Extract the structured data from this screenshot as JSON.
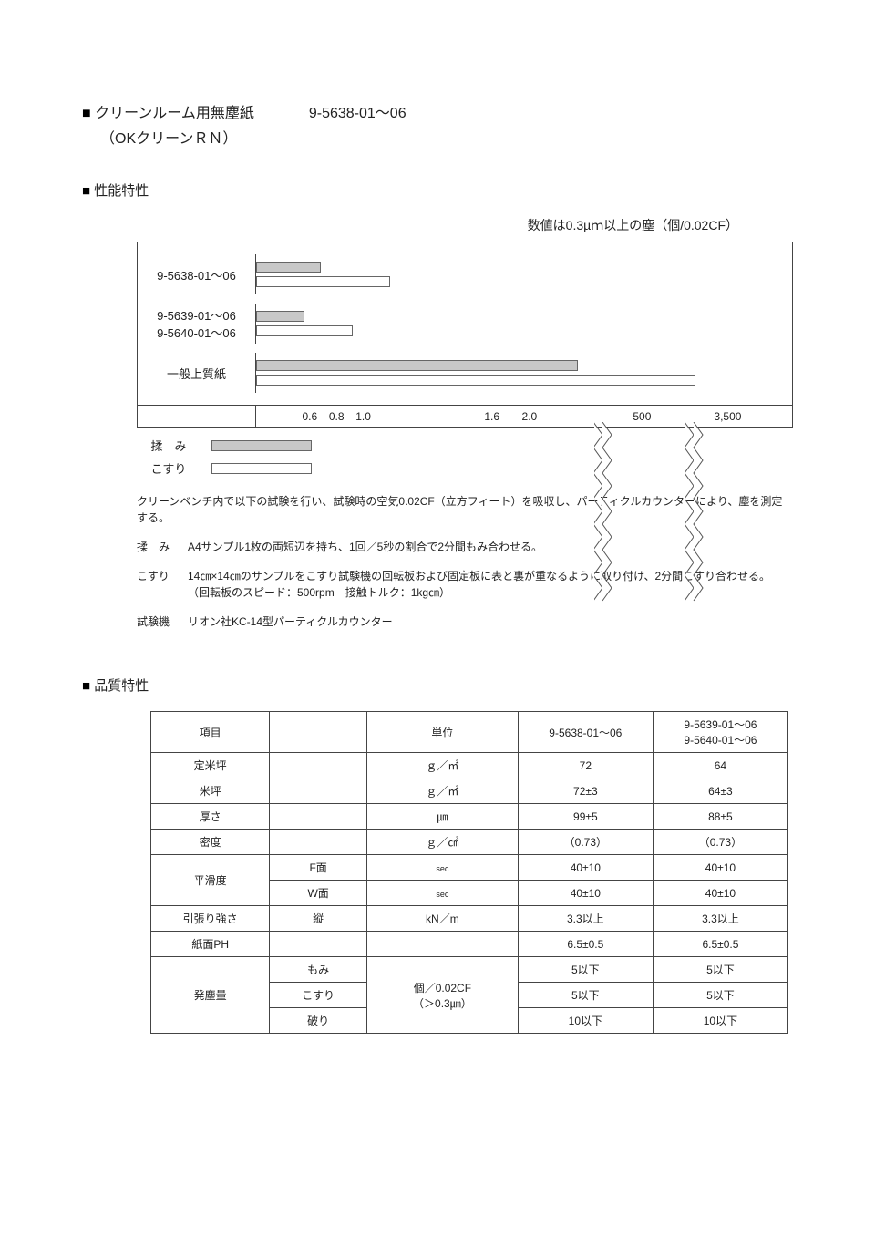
{
  "header": {
    "title": "クリーンルーム用無塵紙",
    "code": "9-5638-01～06",
    "subtitle": "（OKクリーンＲＮ）"
  },
  "section1": {
    "heading": "性能特性",
    "chart_caption": "数値は0.3µｍ以上の塵（個/0.02CF）",
    "rows": [
      {
        "label": "9-5638-01～06",
        "lines": [
          ""
        ],
        "bar1_pct": 12,
        "bar2_pct": 25
      },
      {
        "label": "9-5639-01～06",
        "lines": [
          "9-5640-01～06"
        ],
        "bar1_pct": 9,
        "bar2_pct": 18
      },
      {
        "label": "一般上質紙",
        "lines": [],
        "bar1_pct": 60,
        "bar2_pct": 82,
        "open_bar_pct": 86
      }
    ],
    "axis_ticks": [
      {
        "label": "0.6",
        "pos_pct": 10
      },
      {
        "label": "0.8",
        "pos_pct": 15
      },
      {
        "label": "1.0",
        "pos_pct": 20
      },
      {
        "label": "1.6",
        "pos_pct": 44
      },
      {
        "label": "2.0",
        "pos_pct": 51
      },
      {
        "label": "500",
        "pos_pct": 72
      },
      {
        "label": "3,500",
        "pos_pct": 88
      }
    ],
    "breaks": [
      {
        "pos_pct": 63
      },
      {
        "pos_pct": 80
      }
    ],
    "legend": [
      {
        "label": "揉　み",
        "fill": "#c8c8c8"
      },
      {
        "label": "こすり",
        "fill": "#ffffff"
      }
    ],
    "notes": {
      "intro": "クリーンベンチ内で以下の試験を行い、試験時の空気0.02CF（立方フィート）を吸収し、パーティクルカウンターにより、塵を測定する。",
      "items": [
        {
          "key": "揉　み",
          "text": "A4サンプル1枚の両短辺を持ち、1回／5秒の割合で2分間もみ合わせる。"
        },
        {
          "key": "こすり",
          "text": "14㎝×14㎝のサンプルをこすり試験機の回転板および固定板に表と裏が重なるように取り付け、2分間こすり合わせる。\n（回転板のスピード：500rpm　接触トルク：1kg㎝）"
        },
        {
          "key": "試験機",
          "text": "リオン社KC-14型パーティクルカウンター"
        }
      ]
    }
  },
  "section2": {
    "heading": "品質特性",
    "columns": [
      "項目",
      "",
      "単位",
      "9-5638-01～06",
      "9-5639-01～06\n9-5640-01～06"
    ],
    "rows": [
      {
        "item": "定米坪",
        "sub": "",
        "unit": "ｇ／㎡",
        "v1": "72",
        "v2": "64"
      },
      {
        "item": "米坪",
        "sub": "",
        "unit": "ｇ／㎡",
        "v1": "72±3",
        "v2": "64±3"
      },
      {
        "item": "厚さ",
        "sub": "",
        "unit": "㎛",
        "v1": "99±5",
        "v2": "88±5"
      },
      {
        "item": "密度",
        "sub": "",
        "unit": "ｇ／㎤",
        "v1": "（0.73）",
        "v2": "（0.73）"
      },
      {
        "item": "平滑度",
        "sub": "F面",
        "unit_tiny": "sec",
        "v1": "40±10",
        "v2": "40±10",
        "rowspan": 2
      },
      {
        "item": "",
        "sub": "W面",
        "unit_tiny": "sec",
        "v1": "40±10",
        "v2": "40±10"
      },
      {
        "item": "引張り強さ",
        "sub": "縦",
        "unit": "kN／m",
        "v1": "3.3以上",
        "v2": "3.3以上"
      },
      {
        "item": "紙面PH",
        "sub": "",
        "unit": "",
        "v1": "6.5±0.5",
        "v2": "6.5±0.5"
      },
      {
        "item": "発塵量",
        "sub": "もみ",
        "unit": "個／0.02CF\n（＞0.3㎛）",
        "v1": "5以下",
        "v2": "5以下",
        "rowspan": 3,
        "unit_rowspan": 3
      },
      {
        "item": "",
        "sub": "こすり",
        "unit": "",
        "v1": "5以下",
        "v2": "5以下"
      },
      {
        "item": "",
        "sub": "破り",
        "unit": "",
        "v1": "10以下",
        "v2": "10以下"
      }
    ]
  },
  "colors": {
    "bar_fill": "#c8c8c8",
    "border": "#444444",
    "background": "#ffffff",
    "text": "#222222"
  }
}
